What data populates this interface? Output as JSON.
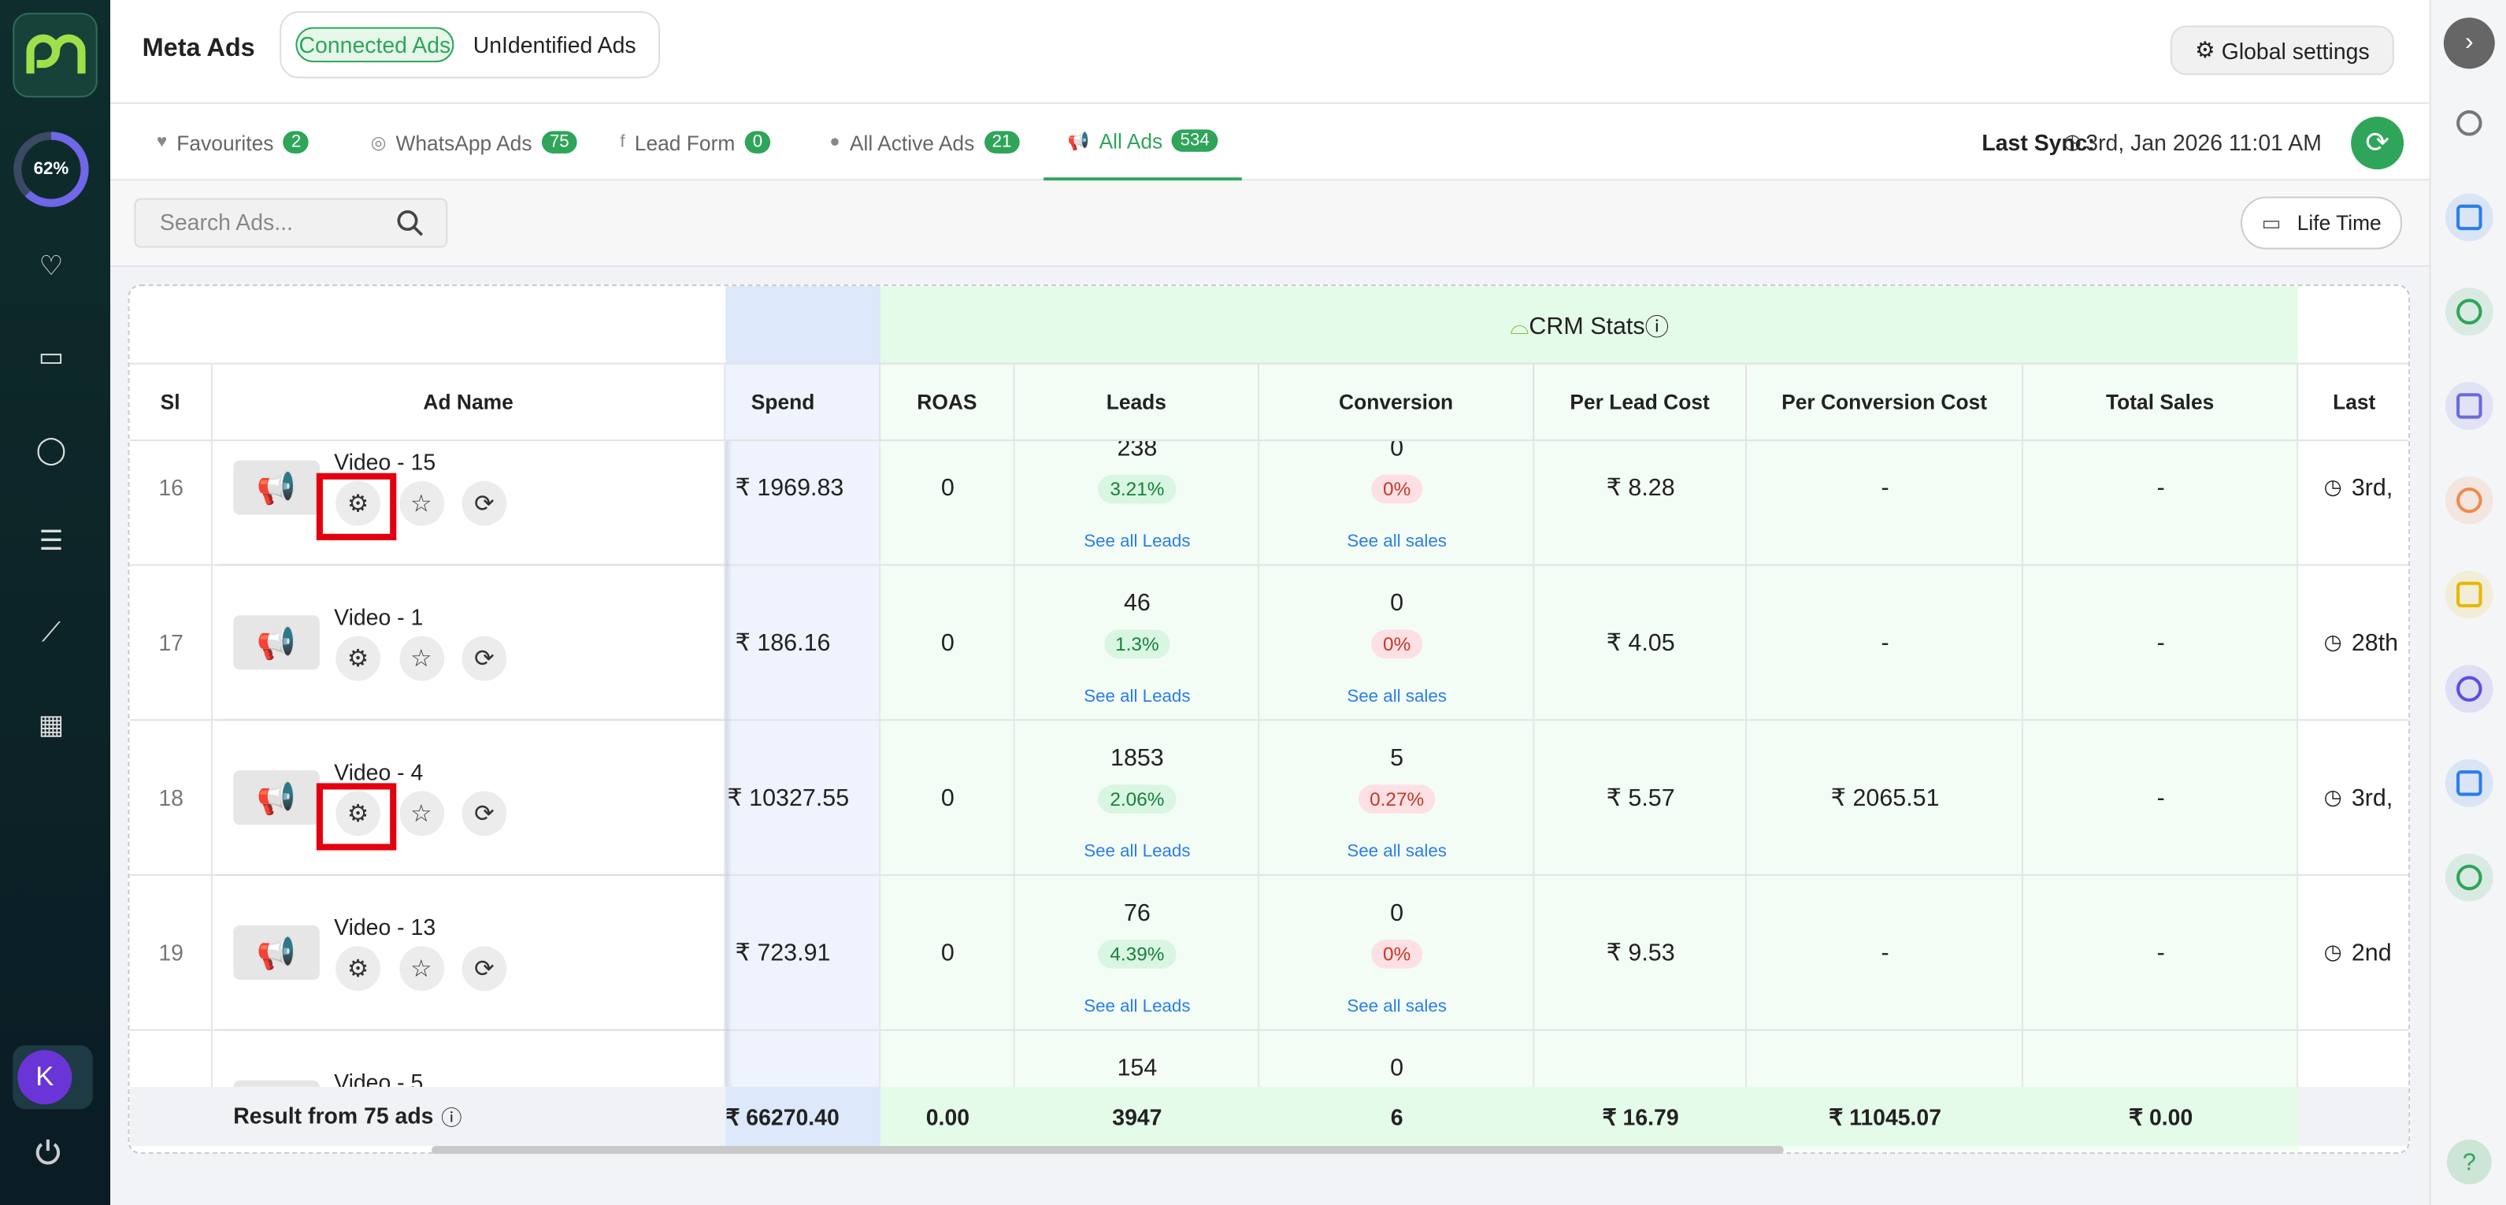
{
  "header": {
    "title": "Meta Ads",
    "toggle": [
      "Connected Ads",
      "UnIdentified Ads"
    ],
    "settings": "Global settings"
  },
  "sidebar": {
    "progress": "62%",
    "avatar": "K"
  },
  "tabs": [
    {
      "label": "Favourites",
      "count": "2"
    },
    {
      "label": "WhatsApp Ads",
      "count": "75"
    },
    {
      "label": "Lead Form",
      "count": "0"
    },
    {
      "label": "All Active Ads",
      "count": "21"
    },
    {
      "label": "All Ads",
      "count": "534"
    }
  ],
  "sync": {
    "label": "Last Sync:",
    "value": "3rd, Jan 2026 11:01 AM"
  },
  "search": {
    "placeholder": "Search Ads..."
  },
  "date_filter": "Life Time",
  "table": {
    "group_header": "CRM Stats",
    "columns": [
      "Sl",
      "Ad Name",
      "Spend",
      "ROAS",
      "Leads",
      "Conversion",
      "Per Lead Cost",
      "Per Conversion Cost",
      "Total Sales",
      "Last"
    ],
    "rows": [
      {
        "sl": "16",
        "name": "Video - 15",
        "spend": "₹ 1969.83",
        "roas": "0",
        "leads": "238",
        "lead_rate": "3.21%",
        "leads_link": "See all Leads",
        "conversion": "0",
        "conversion_rate": "0%",
        "sales_link": "See all sales",
        "per_lead_cost": "₹ 8.28",
        "per_conversion_cost": "-",
        "total_sales": "-",
        "last": "3rd,"
      },
      {
        "sl": "17",
        "name": "Video - 1",
        "spend": "₹ 186.16",
        "roas": "0",
        "leads": "46",
        "lead_rate": "1.3%",
        "leads_link": "See all Leads",
        "conversion": "0",
        "conversion_rate": "0%",
        "sales_link": "See all sales",
        "per_lead_cost": "₹ 4.05",
        "per_conversion_cost": "-",
        "total_sales": "-",
        "last": "28th"
      },
      {
        "sl": "18",
        "name": "Video - 4",
        "spend": "₹ 10327.55",
        "roas": "0",
        "leads": "1853",
        "lead_rate": "2.06%",
        "leads_link": "See all Leads",
        "conversion": "5",
        "conversion_rate": "0.27%",
        "sales_link": "See all sales",
        "per_lead_cost": "₹ 5.57",
        "per_conversion_cost": "₹ 2065.51",
        "total_sales": "-",
        "last": "3rd,"
      },
      {
        "sl": "19",
        "name": "Video - 13",
        "spend": "₹ 723.91",
        "roas": "0",
        "leads": "76",
        "lead_rate": "4.39%",
        "leads_link": "See all Leads",
        "conversion": "0",
        "conversion_rate": "0%",
        "sales_link": "See all sales",
        "per_lead_cost": "₹ 9.53",
        "per_conversion_cost": "-",
        "total_sales": "-",
        "last": "2nd"
      },
      {
        "name": "Video - 5",
        "leads": "154",
        "conversion": "0"
      }
    ],
    "footer": {
      "label": "Result from 75 ads",
      "spend": "₹ 66270.40",
      "roas": "0.00",
      "leads": "3947",
      "conversion": "6",
      "per_lead_cost": "₹ 16.79",
      "per_conversion_cost": "₹ 11045.07",
      "total_sales": "₹ 0.00"
    }
  }
}
